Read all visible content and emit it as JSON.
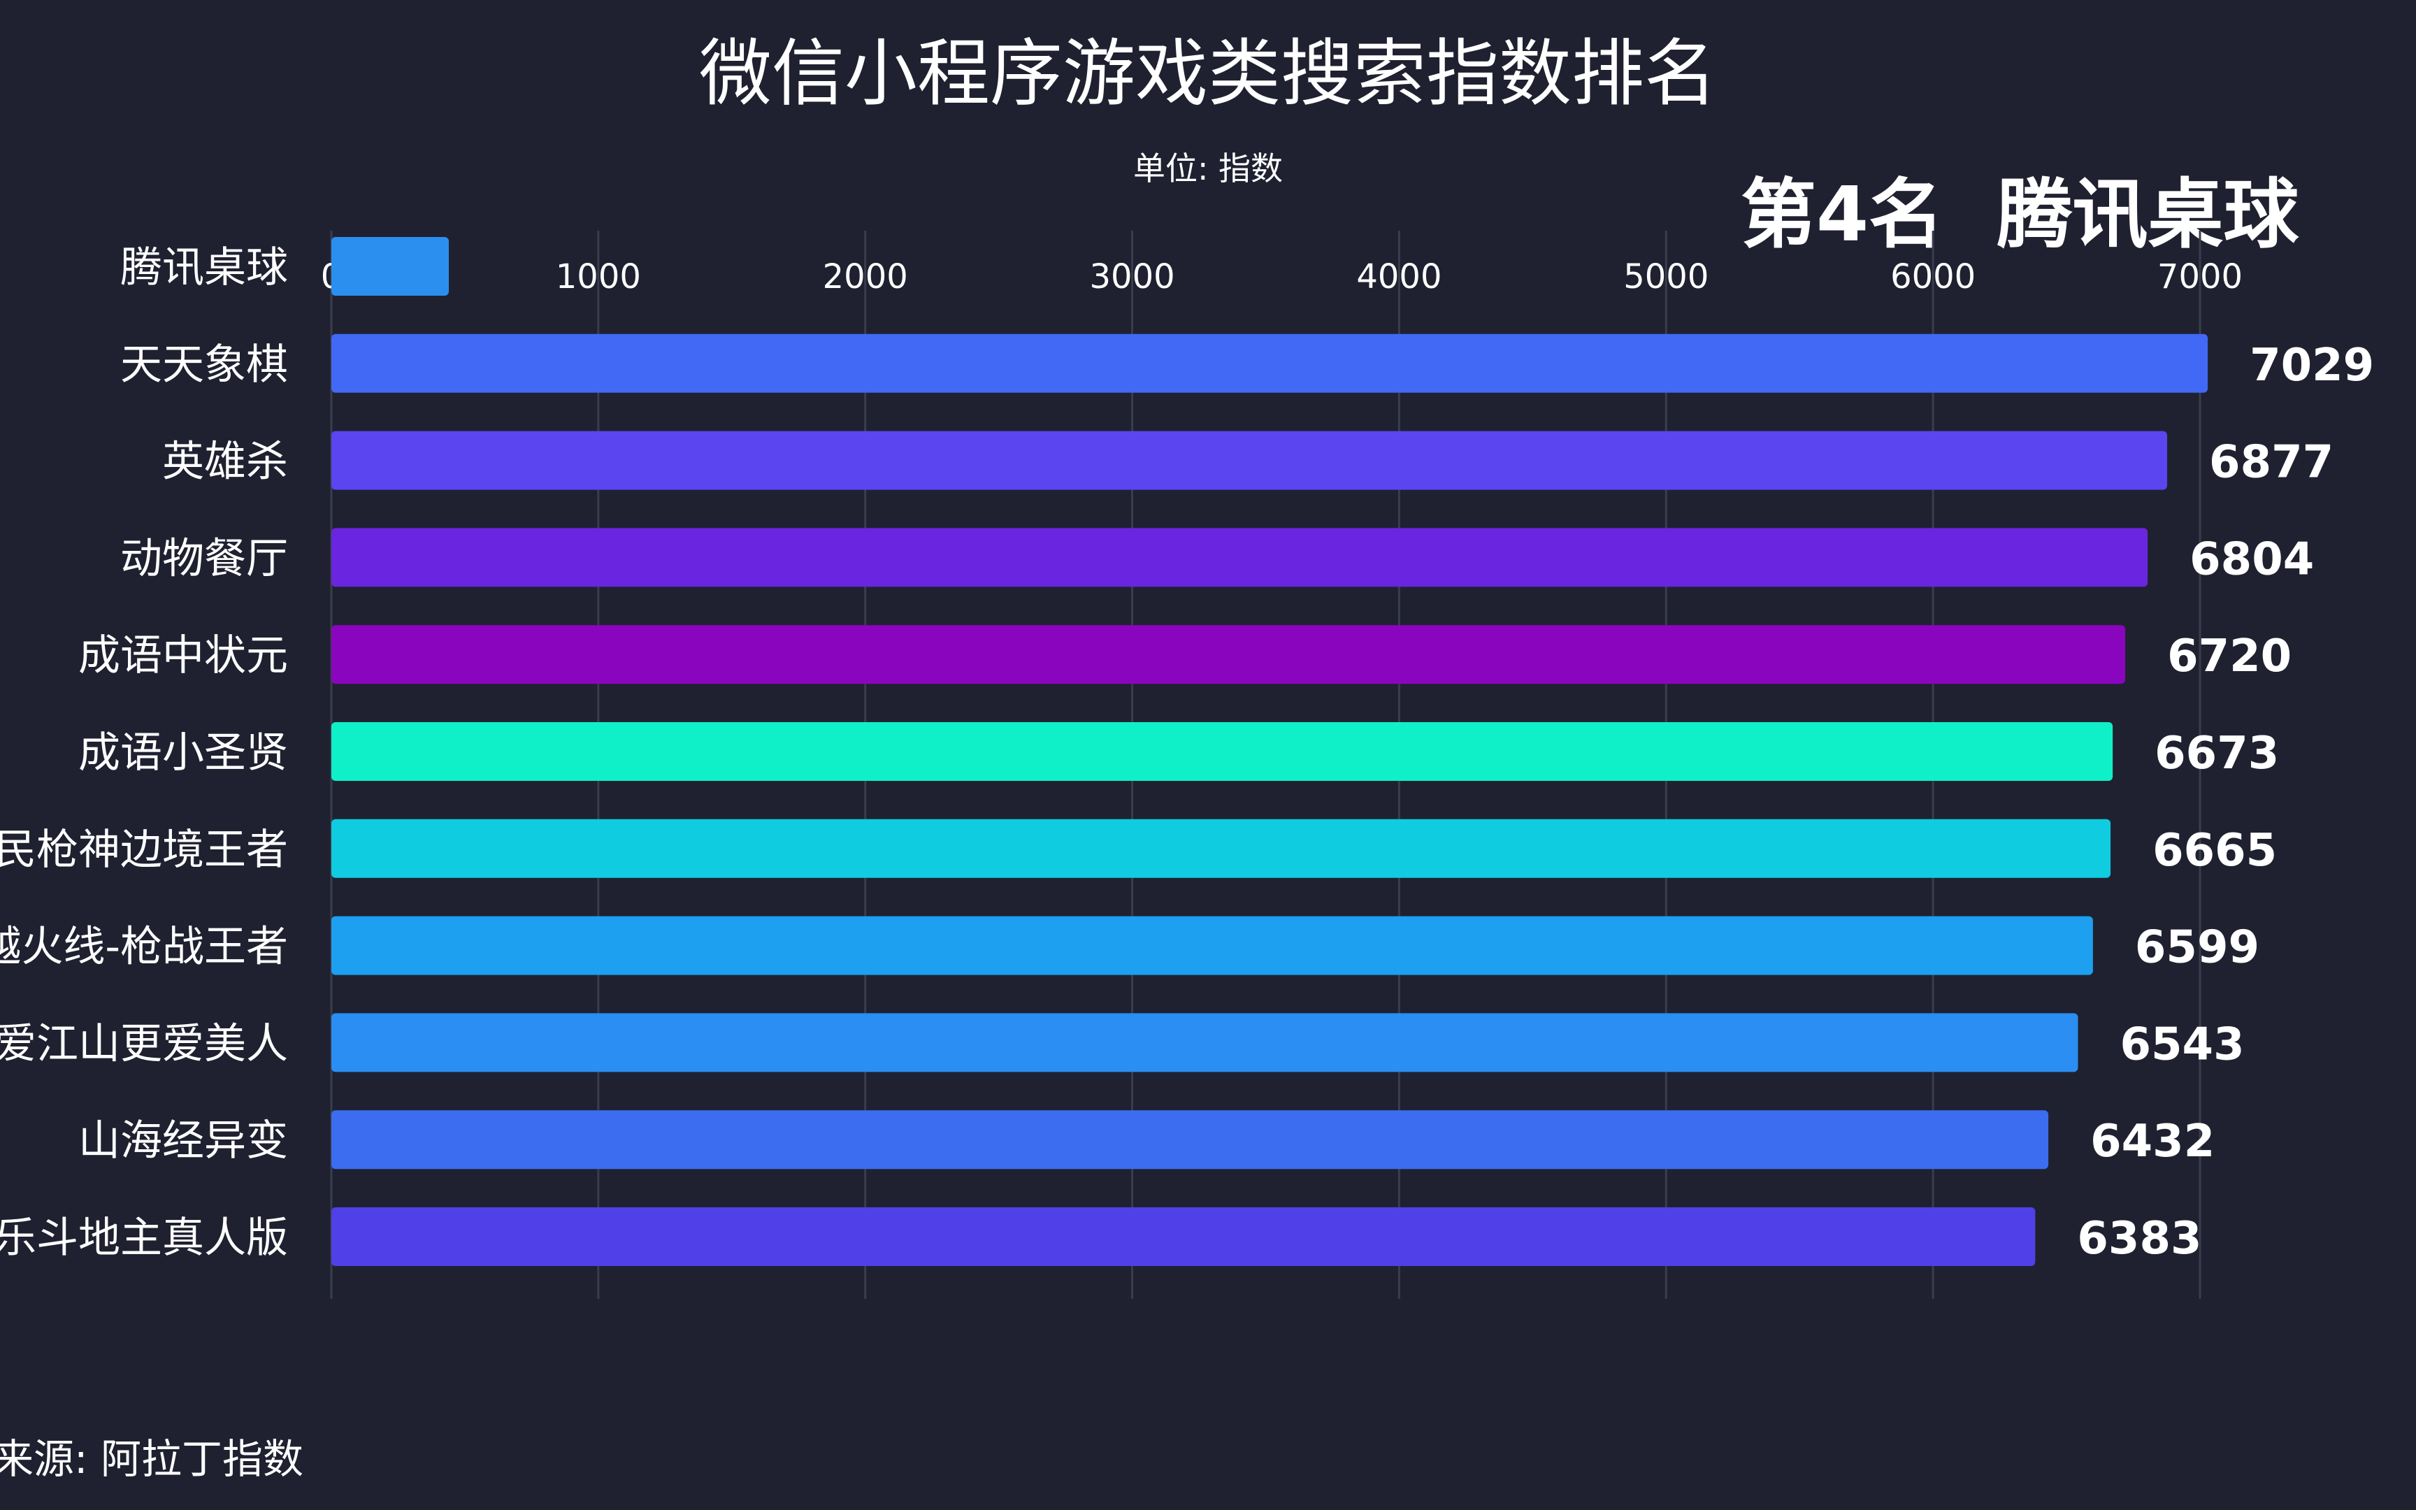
{
  "title": "微信小程序游戏类搜索指数排名",
  "unit_label": "单位: 指数",
  "rank_banner": "第4名  腾讯桌球",
  "source": "来源: 阿拉丁指数",
  "chart_data": {
    "type": "bar",
    "orientation": "horizontal",
    "title": "微信小程序游戏类搜索指数排名",
    "xlim": [
      0,
      7000
    ],
    "x_ticks": [
      "0",
      "1000",
      "2000",
      "3000",
      "4000",
      "5000",
      "6000",
      "7000"
    ],
    "grid": true,
    "categories": [
      "腾讯桌球",
      "天天象棋",
      "英雄杀",
      "动物餐厅",
      "成语中状元",
      "成语小圣贤",
      "全民枪神边境王者",
      "穿越火线-枪战王者",
      "爱江山更爱美人",
      "山海经异变",
      "欢乐斗地主真人版"
    ],
    "values": [
      440,
      7029,
      6877,
      6804,
      6720,
      6673,
      6665,
      6599,
      6543,
      6432,
      6383
    ],
    "value_labels": [
      "",
      "7029",
      "6877",
      "6804",
      "6720",
      "6673",
      "6665",
      "6599",
      "6543",
      "6432",
      "6383"
    ],
    "colors": [
      "#2b8ff0",
      "#4169f5",
      "#5a45f0",
      "#6a25e0",
      "#8a05be",
      "#10f0c8",
      "#10cce0",
      "#1ea0f0",
      "#2a8ef2",
      "#3c6cf0",
      "#5040e8"
    ]
  }
}
